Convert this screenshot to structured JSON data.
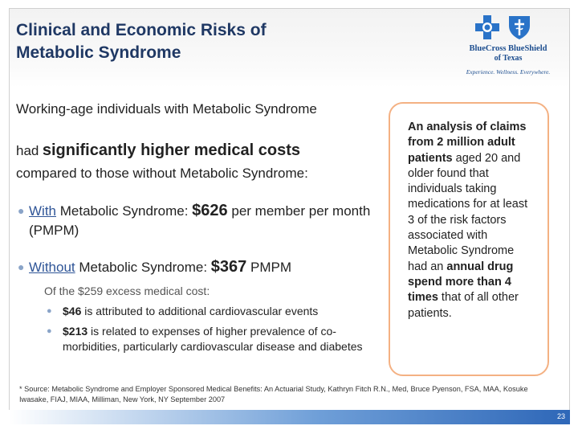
{
  "title": [
    "Clinical and Economic Risks of",
    "Metabolic Syndrome"
  ],
  "logo": {
    "name": "BlueCross BlueShield",
    "sub": "of Texas",
    "tagline": "Experience. Wellness. Everywhere.",
    "icons": [
      "cross-icon",
      "shield-icon"
    ],
    "colors": {
      "brand": "#1d4e8f"
    }
  },
  "intro": {
    "line1": "Working-age individuals with Metabolic Syndrome",
    "line2_prefix": "had",
    "line2_emphasis": "significantly higher medical costs",
    "line3": "compared to those without Metabolic Syndrome:"
  },
  "bullets": [
    {
      "link": "With",
      "text": "Metabolic Syndrome:",
      "amount": "$626",
      "suffix": "per member per month (PMPM)"
    },
    {
      "link": "Without",
      "text": "Metabolic Syndrome:",
      "amount": "$367",
      "suffix": "PMPM"
    }
  ],
  "excess": {
    "heading": "Of the $259 excess medical cost:",
    "items": [
      {
        "amount": "$46",
        "text": "is attributed to additional cardiovascular events"
      },
      {
        "amount": "$213",
        "text": "is related to expenses of higher prevalence of co-morbidities, particularly cardiovascular disease and diabetes"
      }
    ]
  },
  "callout": {
    "p1_bold": "An analysis of claims from 2 million adult patients",
    "p2": "aged 20 and older found that individuals taking medications for at least 3 of the risk factors associated with Metabolic Syndrome had an",
    "p3_bold": "annual drug spend more than 4 times",
    "p4": "that of all other patients."
  },
  "footnote": "* Source: Metabolic Syndrome and Employer Sponsored Medical Benefits: An Actuarial Study, Kathryn Fitch R.N., Med, Bruce Pyenson, FSA, MAA, Kosuke Iwasake, FIAJ, MIAA, Milliman, New York, NY September 2007",
  "page_number": "23",
  "colors": {
    "title": "#1f3864",
    "link": "#2f5597",
    "box_border": "#f4b183",
    "bullet": "#8aa4c8"
  }
}
